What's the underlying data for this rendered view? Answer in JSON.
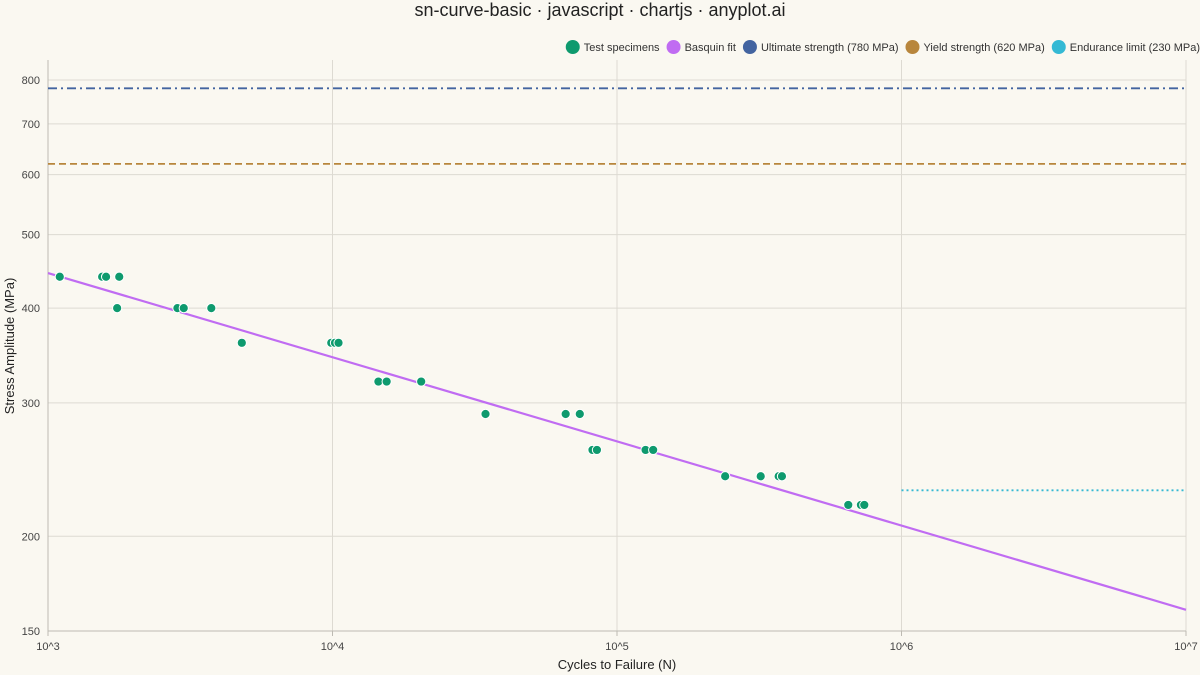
{
  "chart_data": {
    "type": "scatter",
    "title": "sn-curve-basic · javascript · chartjs · anyplot.ai",
    "xlabel": "Cycles to Failure (N)",
    "ylabel": "Stress Amplitude (MPa)",
    "xscale": "log",
    "yscale": "log",
    "xlim": [
      1000,
      10000000
    ],
    "ylim": [
      150,
      850
    ],
    "x_ticks": [
      {
        "value": 1000,
        "label": "10^3"
      },
      {
        "value": 10000,
        "label": "10^4"
      },
      {
        "value": 100000,
        "label": "10^5"
      },
      {
        "value": 1000000,
        "label": "10^6"
      },
      {
        "value": 10000000,
        "label": "10^7"
      }
    ],
    "y_ticks": [
      150,
      200,
      300,
      400,
      500,
      600,
      700,
      800
    ],
    "grid": true,
    "legend_position": "top-right",
    "series": [
      {
        "name": "Test specimens",
        "kind": "scatter",
        "color": "#0E9A6E",
        "points": [
          [
            1100,
            440
          ],
          [
            1550,
            440
          ],
          [
            1600,
            440
          ],
          [
            1780,
            440
          ],
          [
            1750,
            400
          ],
          [
            2850,
            400
          ],
          [
            3000,
            400
          ],
          [
            3750,
            400
          ],
          [
            4800,
            360
          ],
          [
            9900,
            360
          ],
          [
            10200,
            360
          ],
          [
            10500,
            360
          ],
          [
            14500,
            320
          ],
          [
            15500,
            320
          ],
          [
            20500,
            320
          ],
          [
            34500,
            290
          ],
          [
            66000,
            290
          ],
          [
            74000,
            290
          ],
          [
            82000,
            260
          ],
          [
            85000,
            260
          ],
          [
            126000,
            260
          ],
          [
            134000,
            260
          ],
          [
            240000,
            240
          ],
          [
            320000,
            240
          ],
          [
            370000,
            240
          ],
          [
            380000,
            240
          ],
          [
            650000,
            220
          ],
          [
            720000,
            220
          ],
          [
            740000,
            220
          ]
        ]
      },
      {
        "name": "Basquin fit",
        "kind": "line",
        "color": "#C06CF2",
        "x": [
          1000,
          10000000
        ],
        "y": [
          445,
          160
        ]
      },
      {
        "name": "Ultimate strength (780 MPa)",
        "kind": "hline",
        "color": "#4364A0",
        "value": 780,
        "x_range": [
          1000,
          10000000
        ],
        "dash": "dashdot"
      },
      {
        "name": "Yield strength (620 MPa)",
        "kind": "hline",
        "color": "#B8863C",
        "value": 620,
        "x_range": [
          1000,
          10000000
        ],
        "dash": "dashed"
      },
      {
        "name": "Endurance limit (230 MPa)",
        "kind": "hline",
        "color": "#34B9D4",
        "value": 230,
        "x_range": [
          1000000,
          10000000
        ],
        "dash": "dotted"
      }
    ]
  }
}
